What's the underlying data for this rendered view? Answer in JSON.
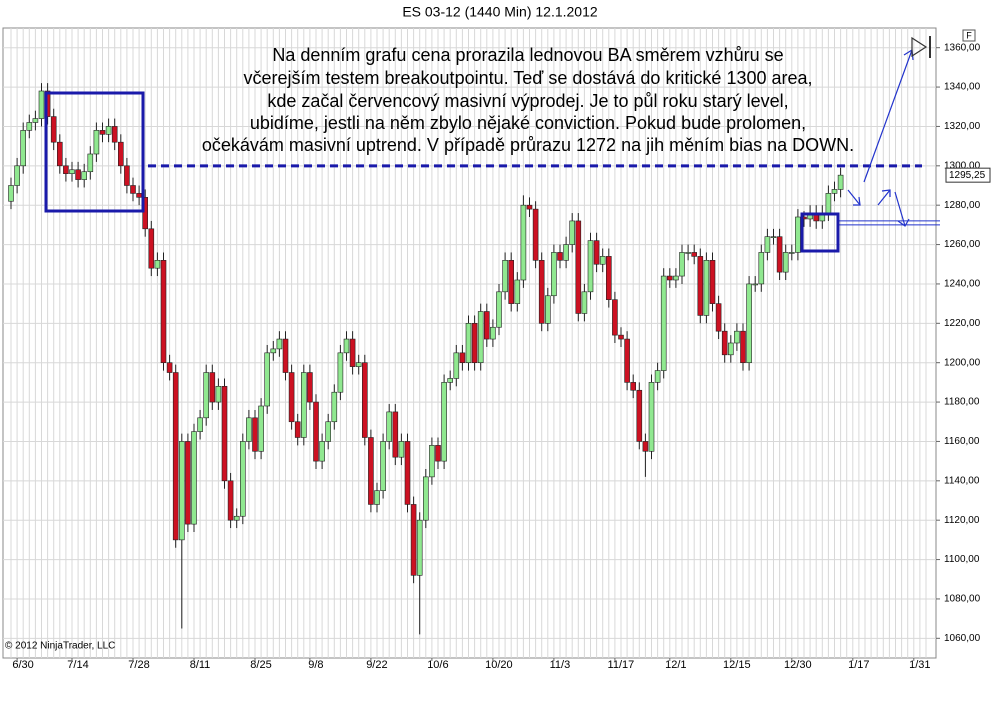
{
  "chart_data": {
    "type": "candlestick",
    "title": "ES 03-12 (1440 Min)  12.1.2012",
    "copyright": "© 2012 NinjaTrader, LLC",
    "panel_label": "F",
    "annotation": [
      "Na denním grafu cena prorazila lednovou BA směrem vzhůru se",
      "včerejším testem breakoutpointu. Teď se dostává do kritické 1300 area,",
      "kde začal červencový masivní výprodej. Je to půl roku starý level,",
      "ubidíme, jestli na něm zbylo nějaké conviction. Pokud bude prolomen,",
      "očekávám masivní uptrend. V případě průrazu 1272 na jih měním bias na DOWN."
    ],
    "categories": [
      null,
      "6/30",
      null,
      null,
      null,
      null,
      null,
      null,
      null,
      null,
      "7/14",
      null,
      null,
      null,
      null,
      null,
      null,
      null,
      null,
      null,
      "7/28",
      null,
      null,
      null,
      null,
      null,
      null,
      null,
      null,
      null,
      "8/11",
      null,
      null,
      null,
      null,
      null,
      null,
      null,
      null,
      null,
      "8/25",
      null,
      null,
      null,
      null,
      null,
      null,
      null,
      null,
      "9/8",
      null,
      null,
      null,
      null,
      null,
      null,
      null,
      null,
      null,
      "9/22",
      null,
      null,
      null,
      null,
      null,
      null,
      null,
      null,
      null,
      "10/6",
      null,
      null,
      null,
      null,
      null,
      null,
      null,
      null,
      null,
      "10/20",
      null,
      null,
      null,
      null,
      null,
      null,
      null,
      null,
      null,
      "11/3",
      null,
      null,
      null,
      null,
      null,
      null,
      null,
      null,
      null,
      "11/17",
      null,
      null,
      null,
      null,
      null,
      null,
      null,
      null,
      "12/1",
      null,
      null,
      null,
      null,
      null,
      null,
      null,
      null,
      null,
      "12/15",
      null,
      null,
      null,
      null,
      null,
      null,
      null,
      null,
      null,
      "12/30",
      null,
      null,
      null,
      null,
      null,
      null,
      null,
      null,
      null,
      "1/17",
      null,
      null,
      null,
      null,
      null,
      null,
      null,
      null,
      null,
      "1/31",
      null,
      null
    ],
    "open": [
      1282,
      1290,
      1300,
      1318,
      1322,
      1324,
      1338,
      1325,
      1312,
      1300,
      1296,
      1298,
      1293,
      1297,
      1306,
      1318,
      1316,
      1320,
      1312,
      1300,
      1290,
      1286,
      1284,
      1268,
      1248,
      1252,
      1200,
      1195,
      1110,
      1160,
      1118,
      1165,
      1172,
      1195,
      1180,
      1188,
      1140,
      1120,
      1122,
      1160,
      1172,
      1155,
      1178,
      1205,
      1207,
      1212,
      1195,
      1170,
      1162,
      1195,
      1180,
      1150,
      1160,
      1170,
      1185,
      1205,
      1212,
      1198,
      1200,
      1162,
      1128,
      1135,
      1160,
      1175,
      1152,
      1160,
      1128,
      1092,
      1120,
      1142,
      1158,
      1150,
      1190,
      1192,
      1205,
      1200,
      1220,
      1200,
      1226,
      1212,
      1218,
      1236,
      1252,
      1230,
      1242,
      1280,
      1278,
      1252,
      1220,
      1234,
      1256,
      1252,
      1260,
      1272,
      1225,
      1236,
      1262,
      1250,
      1254,
      1232,
      1214,
      1212,
      1190,
      1186,
      1160,
      1155,
      1190,
      1196,
      1244,
      1242,
      1244,
      1256,
      1256,
      1254,
      1224,
      1252,
      1230,
      1216,
      1204,
      1210,
      1216,
      1200,
      1240,
      1240,
      1256,
      1264,
      1264,
      1246,
      1256,
      1256,
      1274,
      1273,
      1276,
      1272,
      1276,
      1286,
      1288,
      null,
      null,
      null,
      null,
      null,
      null,
      null,
      null,
      null,
      null,
      null,
      null,
      null,
      null
    ],
    "high": [
      1294,
      1304,
      1322,
      1326,
      1328,
      1342,
      1342,
      1329,
      1316,
      1304,
      1302,
      1302,
      1301,
      1310,
      1322,
      1322,
      1324,
      1324,
      1316,
      1304,
      1294,
      1290,
      1288,
      1272,
      1256,
      1256,
      1204,
      1199,
      1164,
      1164,
      1169,
      1176,
      1199,
      1199,
      1192,
      1192,
      1144,
      1126,
      1164,
      1176,
      1176,
      1182,
      1209,
      1211,
      1216,
      1216,
      1199,
      1174,
      1199,
      1199,
      1184,
      1164,
      1174,
      1189,
      1209,
      1216,
      1216,
      1204,
      1204,
      1166,
      1139,
      1164,
      1179,
      1179,
      1164,
      1164,
      1132,
      1124,
      1146,
      1162,
      1162,
      1194,
      1196,
      1209,
      1209,
      1224,
      1224,
      1230,
      1230,
      1222,
      1240,
      1256,
      1256,
      1246,
      1285,
      1284,
      1282,
      1256,
      1238,
      1260,
      1260,
      1264,
      1276,
      1276,
      1240,
      1266,
      1266,
      1258,
      1258,
      1236,
      1218,
      1216,
      1194,
      1190,
      1164,
      1194,
      1200,
      1248,
      1248,
      1248,
      1260,
      1260,
      1260,
      1258,
      1256,
      1256,
      1234,
      1220,
      1214,
      1220,
      1220,
      1244,
      1244,
      1260,
      1268,
      1268,
      1268,
      1260,
      1260,
      1278,
      1277,
      1280,
      1280,
      1280,
      1290,
      1292,
      1299,
      null,
      null,
      null,
      null,
      null,
      null,
      null,
      null,
      null,
      null,
      null,
      null,
      null,
      null
    ],
    "low": [
      1278,
      1286,
      1296,
      1314,
      1318,
      1320,
      1321,
      1308,
      1296,
      1292,
      1292,
      1289,
      1289,
      1293,
      1302,
      1312,
      1312,
      1308,
      1296,
      1286,
      1282,
      1280,
      1264,
      1244,
      1244,
      1196,
      1191,
      1106,
      1065,
      1114,
      1114,
      1161,
      1168,
      1176,
      1176,
      1136,
      1116,
      1116,
      1118,
      1156,
      1151,
      1151,
      1174,
      1201,
      1203,
      1191,
      1166,
      1158,
      1158,
      1176,
      1146,
      1146,
      1156,
      1166,
      1181,
      1201,
      1194,
      1194,
      1158,
      1124,
      1124,
      1131,
      1156,
      1148,
      1148,
      1124,
      1088,
      1062,
      1116,
      1138,
      1146,
      1146,
      1186,
      1188,
      1196,
      1196,
      1196,
      1196,
      1208,
      1208,
      1214,
      1232,
      1226,
      1226,
      1238,
      1274,
      1248,
      1216,
      1216,
      1230,
      1248,
      1248,
      1256,
      1221,
      1221,
      1232,
      1246,
      1246,
      1228,
      1210,
      1208,
      1186,
      1182,
      1156,
      1142,
      1151,
      1186,
      1192,
      1238,
      1238,
      1240,
      1252,
      1250,
      1220,
      1220,
      1226,
      1212,
      1200,
      1200,
      1206,
      1196,
      1196,
      1236,
      1236,
      1252,
      1260,
      1242,
      1242,
      1252,
      1252,
      1269,
      1269,
      1268,
      1268,
      1272,
      1282,
      1284,
      null,
      null,
      null,
      null,
      null,
      null,
      null,
      null,
      null,
      null,
      null,
      null,
      null,
      null
    ],
    "close": [
      1290,
      1300,
      1318,
      1322,
      1324,
      1338,
      1325,
      1312,
      1300,
      1296,
      1298,
      1293,
      1297,
      1306,
      1318,
      1316,
      1320,
      1312,
      1300,
      1290,
      1286,
      1284,
      1268,
      1248,
      1252,
      1200,
      1195,
      1110,
      1160,
      1118,
      1165,
      1172,
      1195,
      1180,
      1188,
      1140,
      1120,
      1122,
      1160,
      1172,
      1155,
      1178,
      1205,
      1207,
      1212,
      1195,
      1170,
      1162,
      1195,
      1180,
      1150,
      1160,
      1170,
      1185,
      1205,
      1212,
      1198,
      1200,
      1162,
      1128,
      1135,
      1160,
      1175,
      1152,
      1160,
      1128,
      1092,
      1120,
      1142,
      1158,
      1150,
      1190,
      1192,
      1205,
      1200,
      1220,
      1200,
      1226,
      1212,
      1218,
      1236,
      1252,
      1230,
      1242,
      1280,
      1278,
      1252,
      1220,
      1234,
      1256,
      1252,
      1260,
      1272,
      1225,
      1236,
      1262,
      1250,
      1254,
      1232,
      1214,
      1212,
      1190,
      1186,
      1160,
      1155,
      1190,
      1196,
      1244,
      1242,
      1244,
      1256,
      1256,
      1254,
      1224,
      1252,
      1230,
      1216,
      1204,
      1210,
      1216,
      1200,
      1240,
      1240,
      1256,
      1264,
      1264,
      1246,
      1256,
      1256,
      1274,
      1273,
      1276,
      1272,
      1276,
      1286,
      1288,
      1295.25,
      null,
      null,
      null,
      null,
      null,
      null,
      null,
      null,
      null,
      null,
      null,
      null,
      null,
      null
    ],
    "up_color": "#90e890",
    "down_color": "#cc1122",
    "last_price": {
      "value": 1295.25,
      "label": "1295,25"
    },
    "levels": [
      {
        "value": 1300,
        "style": "dashed"
      },
      {
        "value": 1271,
        "style": "double"
      }
    ],
    "ylim": [
      1050,
      1370
    ],
    "yticks": [
      {
        "value": 1060,
        "label": "1060,00"
      },
      {
        "value": 1080,
        "label": "1080,00"
      },
      {
        "value": 1100,
        "label": "1100,00"
      },
      {
        "value": 1120,
        "label": "1120,00"
      },
      {
        "value": 1140,
        "label": "1140,00"
      },
      {
        "value": 1160,
        "label": "1160,00"
      },
      {
        "value": 1180,
        "label": "1180,00"
      },
      {
        "value": 1200,
        "label": "1200,00"
      },
      {
        "value": 1220,
        "label": "1220,00"
      },
      {
        "value": 1240,
        "label": "1240,00"
      },
      {
        "value": 1260,
        "label": "1260,00"
      },
      {
        "value": 1280,
        "label": "1280,00"
      },
      {
        "value": 1300,
        "label": "1300,00"
      },
      {
        "value": 1320,
        "label": "1320,00"
      },
      {
        "value": 1340,
        "label": "1340,00"
      },
      {
        "value": 1360,
        "label": "1360,00"
      }
    ],
    "grid": true
  }
}
